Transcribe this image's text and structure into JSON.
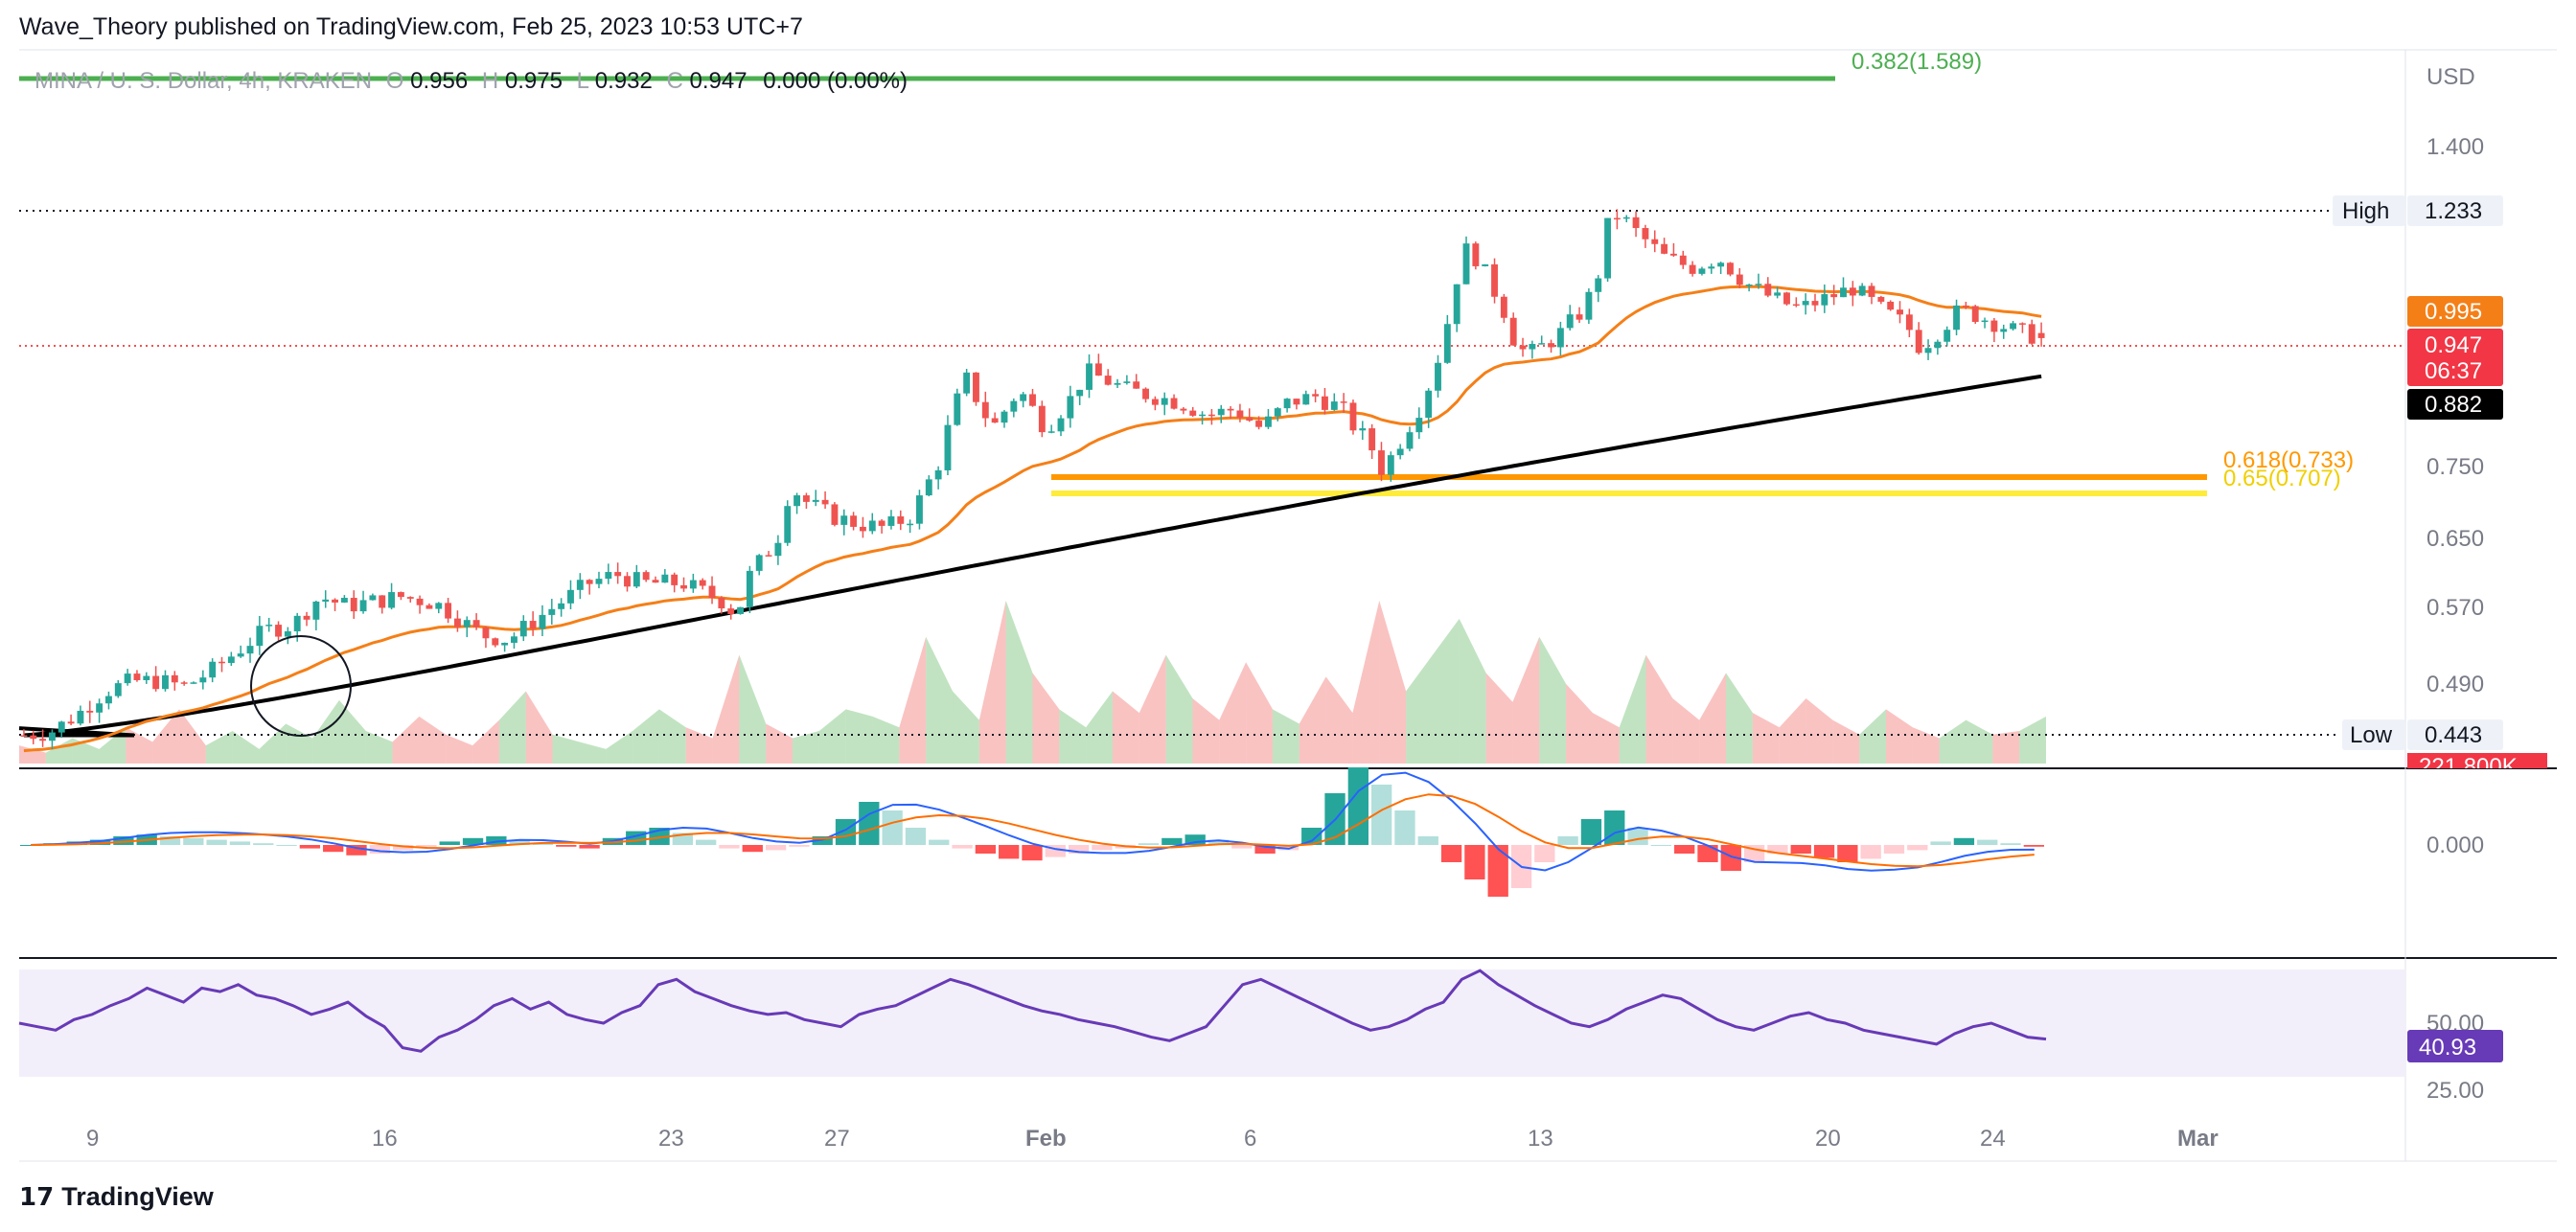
{
  "header": {
    "published": "Wave_Theory published on TradingView.com, Feb 25, 2023 10:53 UTC+7"
  },
  "legend": {
    "symbol": "MINA / U. S. Dollar, 4h, KRAKEN",
    "ohlc": [
      {
        "label": "O",
        "value": "0.956"
      },
      {
        "label": "H",
        "value": "0.975"
      },
      {
        "label": "L",
        "value": "0.932"
      },
      {
        "label": "C",
        "value": "0.947"
      }
    ],
    "change": "0.000 (0.00%)"
  },
  "footer": {
    "logo": "17",
    "brand": "TradingView"
  },
  "colors": {
    "up": "#26a69a",
    "down": "#ef5350",
    "ema_short": "#f57f17",
    "ema_long": "#000000",
    "fib_green": "#4caf50",
    "fib_orange": "#ff9800",
    "fib_yellow": "#ffeb3b",
    "rsi_line": "#673ab7",
    "rsi_bg": "#f3effa",
    "macd": "#2962ff",
    "signal": "#ff6d00"
  },
  "chart_data": {
    "type": "candlestick",
    "title": "MINA / U. S. Dollar, 4h, KRAKEN",
    "currency": "USD",
    "price_axis": [
      "1.400",
      "1.233",
      "0.995",
      "0.947",
      "0.882",
      "0.750",
      "0.650",
      "0.570",
      "0.490",
      "0.443"
    ],
    "price_scale": "log",
    "ylim": [
      0.425,
      1.62
    ],
    "x_ticks": [
      "9",
      "16",
      "23",
      "27",
      "Feb",
      "6",
      "13",
      "20",
      "24",
      "Mar"
    ],
    "ohlc_last": {
      "open": 0.956,
      "high": 0.975,
      "low": 0.932,
      "close": 0.947
    },
    "high": {
      "label": "High",
      "value": "1.233"
    },
    "low": {
      "label": "Low",
      "value": "0.443"
    },
    "badges": {
      "ema_short": "0.995",
      "price": "0.947",
      "countdown": "06:37",
      "ema_long": "0.882",
      "volume": "221.800K"
    },
    "fib_levels": [
      {
        "label": "0.382(1.589)",
        "value": 1.589,
        "color": "#4caf50"
      },
      {
        "label": "0.618(0.733)",
        "value": 0.733,
        "color": "#ff9800"
      },
      {
        "label": "0.65(0.707)",
        "value": 0.707,
        "color": "#ffeb3b"
      }
    ],
    "price_path": [
      [
        0,
        0.452
      ],
      [
        10,
        0.455
      ],
      [
        20,
        0.47
      ],
      [
        30,
        0.49
      ],
      [
        40,
        0.5
      ],
      [
        50,
        0.5
      ],
      [
        60,
        0.495
      ],
      [
        70,
        0.51
      ],
      [
        80,
        0.53
      ],
      [
        90,
        0.55
      ],
      [
        100,
        0.555
      ],
      [
        110,
        0.585
      ],
      [
        120,
        0.575
      ],
      [
        130,
        0.58
      ],
      [
        140,
        0.585
      ],
      [
        150,
        0.58
      ],
      [
        155,
        0.575
      ],
      [
        170,
        0.545
      ],
      [
        180,
        0.54
      ],
      [
        190,
        0.56
      ],
      [
        200,
        0.58
      ],
      [
        210,
        0.6
      ],
      [
        220,
        0.61
      ],
      [
        230,
        0.6
      ],
      [
        245,
        0.6
      ],
      [
        260,
        0.58
      ],
      [
        265,
        0.565
      ],
      [
        270,
        0.61
      ],
      [
        280,
        0.65
      ],
      [
        285,
        0.72
      ],
      [
        290,
        0.7
      ],
      [
        300,
        0.68
      ],
      [
        310,
        0.67
      ],
      [
        320,
        0.665
      ],
      [
        330,
        0.68
      ],
      [
        340,
        0.75
      ],
      [
        345,
        0.82
      ],
      [
        350,
        0.88
      ],
      [
        360,
        0.8
      ],
      [
        370,
        0.86
      ],
      [
        380,
        0.8
      ],
      [
        390,
        0.85
      ],
      [
        395,
        0.89
      ],
      [
        400,
        0.88
      ],
      [
        410,
        0.86
      ],
      [
        420,
        0.85
      ],
      [
        430,
        0.84
      ],
      [
        440,
        0.82
      ],
      [
        450,
        0.83
      ],
      [
        460,
        0.8
      ],
      [
        470,
        0.84
      ],
      [
        480,
        0.85
      ],
      [
        490,
        0.83
      ],
      [
        495,
        0.8
      ],
      [
        500,
        0.78
      ],
      [
        505,
        0.74
      ],
      [
        510,
        0.77
      ],
      [
        520,
        0.84
      ],
      [
        525,
        0.9
      ],
      [
        530,
        0.99
      ],
      [
        535,
        1.12
      ],
      [
        540,
        1.1
      ],
      [
        545,
        1.05
      ],
      [
        550,
        1.0
      ],
      [
        555,
        0.93
      ],
      [
        560,
        0.92
      ],
      [
        570,
        0.95
      ],
      [
        580,
        1.0
      ],
      [
        585,
        1.06
      ],
      [
        590,
        1.2
      ],
      [
        595,
        1.18
      ],
      [
        600,
        1.15
      ],
      [
        610,
        1.1
      ],
      [
        620,
        1.08
      ],
      [
        630,
        1.1
      ],
      [
        640,
        1.05
      ],
      [
        650,
        1.02
      ],
      [
        660,
        1.0
      ],
      [
        670,
        1.02
      ],
      [
        680,
        1.04
      ],
      [
        690,
        1.0
      ],
      [
        700,
        0.97
      ],
      [
        705,
        0.93
      ],
      [
        710,
        0.95
      ],
      [
        720,
        1.0
      ],
      [
        730,
        0.98
      ],
      [
        740,
        0.96
      ],
      [
        750,
        0.947
      ]
    ],
    "rsi": {
      "label": "40.93",
      "ticks": [
        "50.00",
        "25.00"
      ],
      "range": [
        15,
        85
      ],
      "values": [
        50,
        48,
        46,
        52,
        55,
        60,
        64,
        70,
        66,
        62,
        70,
        68,
        72,
        66,
        64,
        60,
        55,
        58,
        62,
        54,
        48,
        36,
        34,
        42,
        46,
        52,
        60,
        64,
        58,
        62,
        55,
        52,
        50,
        56,
        60,
        72,
        75,
        68,
        64,
        60,
        57,
        55,
        56,
        52,
        50,
        48,
        55,
        58,
        60,
        65,
        70,
        75,
        72,
        68,
        64,
        60,
        57,
        55,
        52,
        50,
        48,
        45,
        42,
        40,
        44,
        48,
        60,
        72,
        75,
        70,
        65,
        60,
        55,
        50,
        46,
        48,
        52,
        58,
        62,
        75,
        80,
        72,
        66,
        60,
        55,
        50,
        48,
        52,
        58,
        62,
        66,
        64,
        58,
        52,
        48,
        46,
        50,
        54,
        56,
        52,
        50,
        46,
        44,
        42,
        40,
        38,
        44,
        48,
        50,
        46,
        42,
        40.93
      ]
    },
    "macd": {
      "zero_label": "0.000",
      "histogram": [
        0,
        0.002,
        0.004,
        0.006,
        0.01,
        0.012,
        0.01,
        0.008,
        0.006,
        0.004,
        0.002,
        0,
        -0.004,
        -0.008,
        -0.012,
        -0.01,
        -0.006,
        -0.002,
        0.004,
        0.008,
        0.01,
        0.006,
        0.002,
        -0.002,
        -0.004,
        0.008,
        0.016,
        0.02,
        0.014,
        0.006,
        -0.004,
        -0.008,
        -0.006,
        -0.002,
        0.01,
        0.03,
        0.05,
        0.04,
        0.02,
        0.006,
        -0.004,
        -0.01,
        -0.016,
        -0.018,
        -0.014,
        -0.01,
        -0.006,
        -0.004,
        0.002,
        0.008,
        0.012,
        0.006,
        -0.004,
        -0.01,
        -0.006,
        0.02,
        0.06,
        0.09,
        0.07,
        0.04,
        0.01,
        -0.02,
        -0.04,
        -0.06,
        -0.05,
        -0.02,
        0.01,
        0.03,
        0.04,
        0.02,
        0,
        -0.01,
        -0.02,
        -0.03,
        -0.02,
        -0.01,
        -0.01,
        -0.015,
        -0.02,
        -0.016,
        -0.01,
        -0.006,
        0.004,
        0.008,
        0.006,
        0.002,
        -0.002
      ]
    },
    "volume": {
      "label": "221.800K",
      "values": [
        10,
        6,
        14,
        8,
        20,
        12,
        30,
        10,
        18,
        8,
        22,
        14,
        35,
        18,
        12,
        26,
        16,
        10,
        24,
        40,
        16,
        12,
        8,
        18,
        30,
        20,
        14,
        60,
        22,
        14,
        18,
        30,
        26,
        20,
        70,
        40,
        24,
        90,
        50,
        30,
        20,
        40,
        28,
        60,
        36,
        24,
        56,
        30,
        22,
        48,
        28,
        90,
        40,
        60,
        80,
        50,
        34,
        70,
        44,
        28,
        20,
        60,
        36,
        24,
        50,
        28,
        20,
        36,
        24,
        16,
        30,
        20,
        14,
        24,
        16,
        18,
        26
      ]
    }
  }
}
